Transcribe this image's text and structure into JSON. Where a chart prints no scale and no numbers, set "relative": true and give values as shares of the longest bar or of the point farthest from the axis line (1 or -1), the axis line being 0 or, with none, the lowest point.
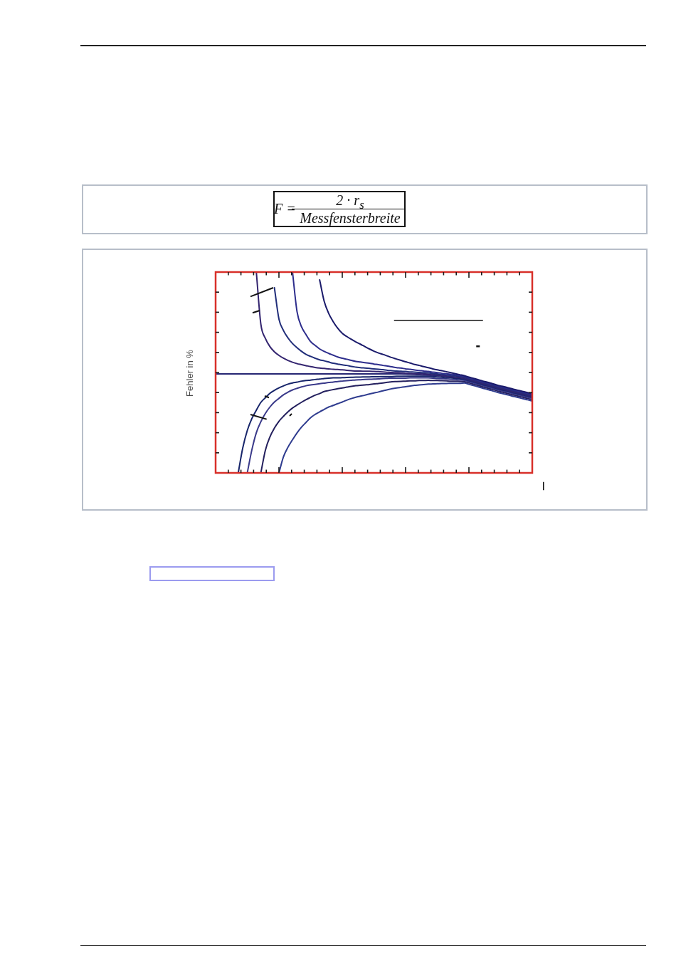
{
  "chart_data": {
    "type": "line",
    "relative": true,
    "ylabel": "Fehler in %",
    "annotations": [
      "F =",
      "2 · r$_{s}$",
      "Messfensterbreite"
    ],
    "categories": [
      null,
      null,
      null,
      null,
      null,
      null,
      null,
      null,
      null,
      null,
      null,
      null,
      null,
      null,
      null,
      null,
      null,
      null,
      null,
      null,
      null,
      null,
      null,
      null,
      null,
      null,
      null,
      null,
      null,
      null,
      null,
      null,
      null,
      null,
      null,
      null,
      null,
      null,
      null,
      null,
      null,
      null,
      null,
      null,
      null,
      null,
      null,
      null,
      null,
      null,
      null,
      null,
      null,
      null,
      null,
      null,
      null,
      null,
      null,
      null,
      null,
      null,
      null,
      null,
      null,
      null,
      null,
      null,
      null,
      null,
      null
    ],
    "series": [
      {
        "color": "#1b1b6b",
        "values": [
          null,
          null,
          null,
          null,
          null,
          null,
          null,
          null,
          null,
          null,
          null,
          null,
          null,
          null,
          null,
          null,
          null,
          null,
          null,
          null,
          null,
          null,
          null,
          0.961,
          0.855,
          0.794,
          0.753,
          0.72,
          0.695,
          0.679,
          0.665,
          0.652,
          0.641,
          0.629,
          0.617,
          0.606,
          0.597,
          0.59,
          0.582,
          0.574,
          0.567,
          0.56,
          0.553,
          0.547,
          0.54,
          0.535,
          0.529,
          0.524,
          0.518,
          0.513,
          0.509,
          0.504,
          0.499,
          0.494,
          0.489,
          0.484,
          0.477,
          0.471,
          0.465,
          0.458,
          0.452,
          0.446,
          0.439,
          0.433,
          0.428,
          0.422,
          0.416,
          0.411,
          0.405,
          0.4,
          0.394
        ]
      },
      {
        "color": "#2d2d8c",
        "values": [
          null,
          null,
          null,
          null,
          null,
          null,
          null,
          null,
          null,
          null,
          null,
          null,
          null,
          null,
          null,
          null,
          null,
          1,
          0.803,
          0.727,
          0.688,
          0.654,
          0.635,
          0.617,
          0.605,
          0.595,
          0.586,
          0.577,
          0.571,
          0.566,
          0.56,
          0.555,
          0.552,
          0.549,
          0.546,
          0.542,
          0.539,
          0.535,
          0.532,
          0.528,
          0.524,
          0.522,
          0.518,
          0.516,
          0.512,
          0.51,
          0.507,
          0.505,
          0.502,
          0.499,
          0.496,
          0.494,
          0.491,
          0.488,
          0.484,
          0.48,
          0.473,
          0.467,
          0.461,
          0.454,
          0.448,
          0.442,
          0.435,
          0.429,
          0.424,
          0.418,
          0.412,
          0.407,
          0.401,
          0.396,
          0.39
        ]
      },
      {
        "color": "#212e7a",
        "values": [
          null,
          null,
          null,
          null,
          null,
          null,
          null,
          null,
          null,
          null,
          null,
          null,
          null,
          0.922,
          0.766,
          0.709,
          0.672,
          0.644,
          0.623,
          0.605,
          0.59,
          0.58,
          0.571,
          0.563,
          0.558,
          0.552,
          0.546,
          0.542,
          0.538,
          0.535,
          0.53,
          0.527,
          0.524,
          0.522,
          0.52,
          0.518,
          0.516,
          0.514,
          0.511,
          0.509,
          0.507,
          0.506,
          0.505,
          0.503,
          0.502,
          0.5,
          0.499,
          0.498,
          0.495,
          0.493,
          0.49,
          0.488,
          0.485,
          0.483,
          0.48,
          0.477,
          0.47,
          0.464,
          0.458,
          0.451,
          0.445,
          0.439,
          0.432,
          0.426,
          0.421,
          0.415,
          0.409,
          0.404,
          0.398,
          0.393,
          0.387
        ]
      },
      {
        "color": "#33246f",
        "values": [
          null,
          null,
          null,
          null,
          null,
          null,
          null,
          null,
          null,
          1,
          0.741,
          0.67,
          0.629,
          0.603,
          0.585,
          0.571,
          0.56,
          0.551,
          0.544,
          0.539,
          0.534,
          0.529,
          0.525,
          0.522,
          0.52,
          0.518,
          0.516,
          0.515,
          0.513,
          0.511,
          0.509,
          0.507,
          0.507,
          0.506,
          0.506,
          0.505,
          0.504,
          0.503,
          0.501,
          0.5,
          0.499,
          0.498,
          0.496,
          0.495,
          0.494,
          0.494,
          0.493,
          0.492,
          0.49,
          0.488,
          0.485,
          0.482,
          0.48,
          0.477,
          0.474,
          0.473,
          0.466,
          0.46,
          0.454,
          0.447,
          0.441,
          0.435,
          0.428,
          0.422,
          0.417,
          0.411,
          0.405,
          0.4,
          0.394,
          0.389,
          0.383
        ]
      },
      {
        "color": "#262673",
        "values": [
          0.493,
          0.493,
          0.493,
          0.493,
          0.493,
          0.493,
          0.493,
          0.493,
          0.493,
          0.493,
          0.493,
          0.493,
          0.493,
          0.493,
          0.493,
          0.493,
          0.493,
          0.493,
          0.493,
          0.493,
          0.493,
          0.493,
          0.493,
          0.493,
          0.493,
          0.493,
          0.493,
          0.493,
          0.493,
          0.493,
          0.493,
          0.493,
          0.493,
          0.493,
          0.493,
          0.493,
          0.493,
          0.493,
          0.493,
          0.493,
          0.493,
          0.493,
          0.492,
          0.491,
          0.49,
          0.489,
          0.488,
          0.487,
          0.485,
          0.484,
          0.482,
          0.48,
          0.478,
          0.477,
          0.475,
          0.469,
          0.462,
          0.456,
          0.45,
          0.443,
          0.437,
          0.431,
          0.424,
          0.418,
          0.413,
          0.407,
          0.401,
          0.396,
          0.39,
          0.385,
          0.379
        ]
      },
      {
        "color": "#17256a",
        "values": [
          null,
          null,
          null,
          null,
          null,
          0,
          0.124,
          0.211,
          0.27,
          0.312,
          0.351,
          0.374,
          0.396,
          0.411,
          0.423,
          0.433,
          0.442,
          0.448,
          0.452,
          0.457,
          0.46,
          0.462,
          0.465,
          0.467,
          0.47,
          0.472,
          0.473,
          0.473,
          0.474,
          0.475,
          0.476,
          0.477,
          0.477,
          0.478,
          0.478,
          0.479,
          0.479,
          0.48,
          0.48,
          0.48,
          0.481,
          0.481,
          0.481,
          0.481,
          0.481,
          0.481,
          0.481,
          0.481,
          0.48,
          0.478,
          0.476,
          0.474,
          0.473,
          0.471,
          0.469,
          0.466,
          0.459,
          0.453,
          0.447,
          0.44,
          0.434,
          0.428,
          0.421,
          0.415,
          0.41,
          0.404,
          0.398,
          0.393,
          0.387,
          0.382,
          0.376
        ]
      },
      {
        "color": "#3a3a8a",
        "values": [
          null,
          null,
          null,
          null,
          null,
          null,
          null,
          0,
          0.113,
          0.2,
          0.255,
          0.296,
          0.328,
          0.353,
          0.371,
          0.389,
          0.402,
          0.413,
          0.421,
          0.428,
          0.434,
          0.438,
          0.441,
          0.444,
          0.447,
          0.45,
          0.452,
          0.455,
          0.457,
          0.459,
          0.461,
          0.463,
          0.464,
          0.465,
          0.466,
          0.467,
          0.468,
          0.47,
          0.471,
          0.472,
          0.472,
          0.472,
          0.472,
          0.473,
          0.473,
          0.473,
          0.473,
          0.473,
          0.472,
          0.47,
          0.469,
          0.468,
          0.466,
          0.465,
          0.463,
          0.461,
          0.454,
          0.448,
          0.442,
          0.435,
          0.429,
          0.423,
          0.416,
          0.41,
          0.405,
          0.399,
          0.393,
          0.388,
          0.382,
          0.377,
          0.371
        ]
      },
      {
        "color": "#24205e",
        "values": [
          null,
          null,
          null,
          null,
          null,
          null,
          null,
          null,
          null,
          null,
          0,
          0.113,
          0.179,
          0.223,
          0.257,
          0.282,
          0.304,
          0.323,
          0.338,
          0.352,
          0.365,
          0.376,
          0.387,
          0.395,
          0.405,
          0.41,
          0.415,
          0.419,
          0.423,
          0.427,
          0.431,
          0.434,
          0.436,
          0.438,
          0.44,
          0.443,
          0.445,
          0.448,
          0.451,
          0.454,
          0.455,
          0.456,
          0.457,
          0.458,
          0.458,
          0.46,
          0.46,
          0.461,
          0.46,
          0.46,
          0.459,
          0.458,
          0.457,
          0.457,
          0.456,
          0.455,
          0.448,
          0.442,
          0.436,
          0.429,
          0.423,
          0.417,
          0.41,
          0.404,
          0.399,
          0.393,
          0.387,
          0.382,
          0.376,
          0.371,
          0.365
        ]
      },
      {
        "color": "#2f3c8f",
        "values": [
          null,
          null,
          null,
          null,
          null,
          null,
          null,
          null,
          null,
          null,
          null,
          null,
          null,
          null,
          0,
          0.08,
          0.128,
          0.165,
          0.199,
          0.228,
          0.252,
          0.275,
          0.291,
          0.304,
          0.316,
          0.328,
          0.336,
          0.345,
          0.353,
          0.362,
          0.37,
          0.377,
          0.382,
          0.387,
          0.393,
          0.398,
          0.403,
          0.409,
          0.414,
          0.419,
          0.423,
          0.426,
          0.429,
          0.433,
          0.436,
          0.438,
          0.44,
          0.442,
          0.443,
          0.444,
          0.445,
          0.445,
          0.446,
          0.446,
          0.446,
          0.448,
          0.441,
          0.435,
          0.429,
          0.422,
          0.416,
          0.41,
          0.403,
          0.397,
          0.392,
          0.386,
          0.38,
          0.375,
          0.369,
          0.364,
          0.358
        ]
      }
    ]
  }
}
